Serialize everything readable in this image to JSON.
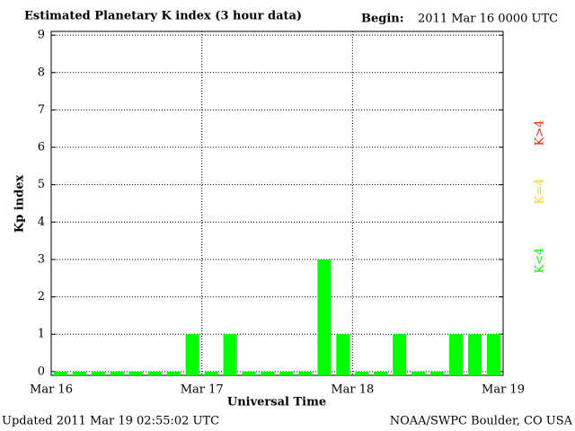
{
  "chart_data": {
    "type": "bar",
    "title": "Estimated Planetary K index (3 hour data)",
    "begin_label": "Begin:",
    "begin_value": "2011 Mar 16 0000 UTC",
    "ylabel": "Kp index",
    "xlabel": "Universal Time",
    "updated": "Updated 2011 Mar 19 02:55:02 UTC",
    "source": "NOAA/SWPC Boulder, CO USA",
    "categories": [
      null,
      null,
      null,
      null,
      null,
      null,
      null,
      null,
      null,
      null,
      null,
      null,
      null,
      null,
      null,
      null,
      null,
      null,
      null,
      null,
      null,
      null,
      null,
      null
    ],
    "values": [
      0,
      0,
      0,
      0,
      0,
      0,
      0,
      1,
      0,
      1,
      0,
      0,
      0,
      0,
      3,
      1,
      0,
      0,
      1,
      0,
      0,
      1,
      1,
      1
    ],
    "color": "#00ff00",
    "xtick_labels": [
      "Mar 16",
      "Mar 17",
      "Mar 18",
      "Mar 19"
    ],
    "ylim": [
      -0.1,
      9.1
    ],
    "yticks": [
      0,
      1,
      2,
      3,
      4,
      5,
      6,
      7,
      8,
      9
    ],
    "grid": true,
    "legend": [
      {
        "label": "K<4",
        "color": "#00ff00"
      },
      {
        "label": "K=4",
        "color": "#ffd700"
      },
      {
        "label": "K>4",
        "color": "#ff2000"
      }
    ]
  }
}
